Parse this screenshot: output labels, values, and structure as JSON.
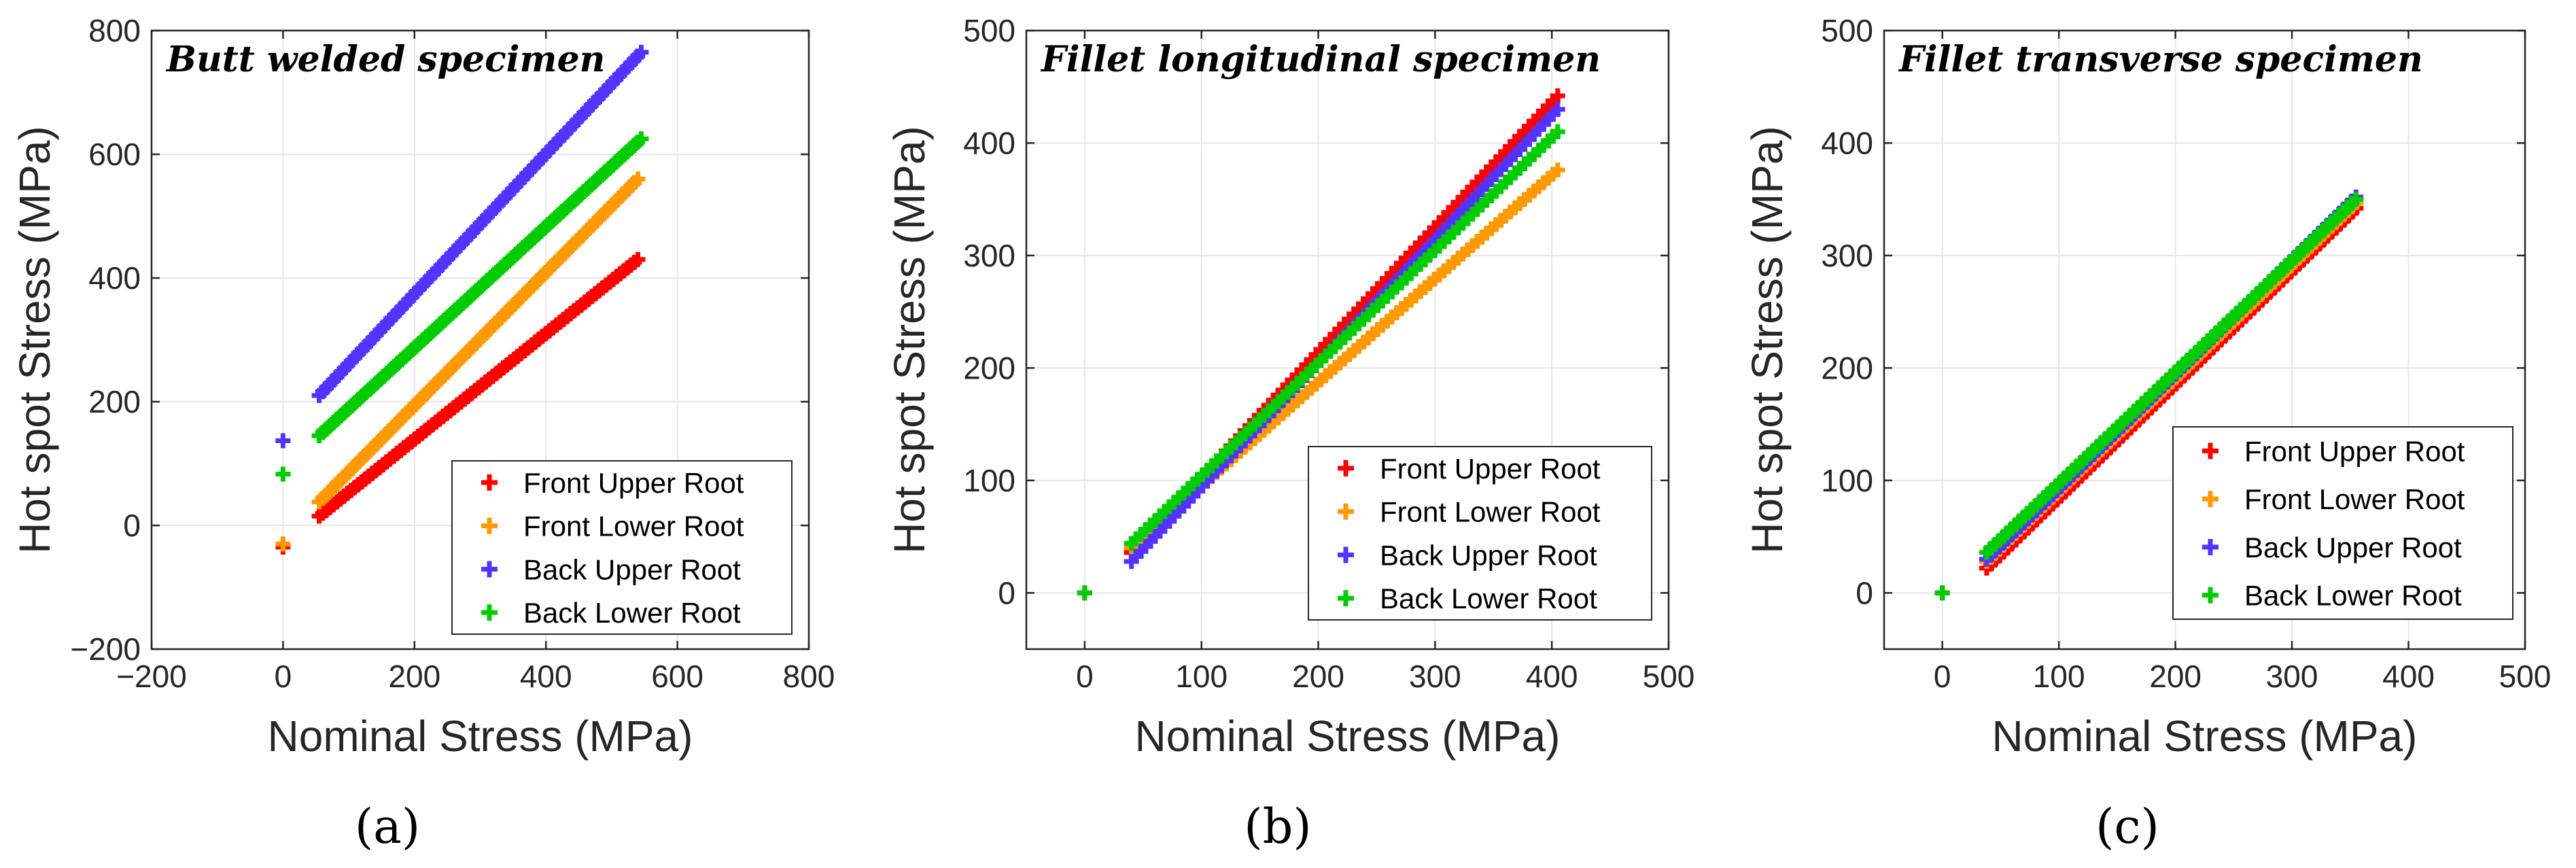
{
  "chart_data": [
    {
      "type": "scatter",
      "panel_label": "(a)",
      "title": "Butt welded specimen",
      "xlabel": "Nominal Stress (MPa)",
      "ylabel": "Hot spot Stress (MPa)",
      "xlim": [
        -200,
        800
      ],
      "ylim": [
        -200,
        800
      ],
      "xticks": [
        -200,
        0,
        200,
        400,
        600,
        800
      ],
      "yticks": [
        -200,
        0,
        200,
        400,
        600,
        800
      ],
      "xtick_labels": [
        "−200",
        "0",
        "200",
        "400",
        "600",
        "800"
      ],
      "ytick_labels": [
        "−200",
        "0",
        "200",
        "400",
        "600",
        "800"
      ],
      "grid": true,
      "legend_position": "bottom-right",
      "series": [
        {
          "name": "Front Upper Root",
          "color": "#ff0000",
          "outlier": [
            0,
            -35
          ],
          "line": [
            [
              55,
              15
            ],
            [
              540,
              430
            ]
          ]
        },
        {
          "name": "Front Lower Root",
          "color": "#ff9900",
          "outlier": [
            0,
            -30
          ],
          "line": [
            [
              55,
              38
            ],
            [
              540,
              560
            ]
          ]
        },
        {
          "name": "Back Upper Root",
          "color": "#5533ff",
          "outlier": [
            0,
            137
          ],
          "line": [
            [
              55,
              210
            ],
            [
              545,
              765
            ]
          ]
        },
        {
          "name": "Back Lower Root",
          "color": "#00cc00",
          "outlier": [
            0,
            83
          ],
          "line": [
            [
              55,
              145
            ],
            [
              545,
              625
            ]
          ]
        }
      ]
    },
    {
      "type": "scatter",
      "panel_label": "(b)",
      "title": "Fillet longitudinal specimen",
      "xlabel": "Nominal Stress (MPa)",
      "ylabel": "Hot spot Stress (MPa)",
      "xlim": [
        -50,
        500
      ],
      "ylim": [
        -50,
        500
      ],
      "xticks": [
        0,
        100,
        200,
        300,
        400,
        500
      ],
      "yticks": [
        0,
        100,
        200,
        300,
        400,
        500
      ],
      "xtick_labels": [
        "0",
        "100",
        "200",
        "300",
        "400",
        "500"
      ],
      "ytick_labels": [
        "0",
        "100",
        "200",
        "300",
        "400",
        "500"
      ],
      "grid": true,
      "legend_position": "bottom-right",
      "series": [
        {
          "name": "Front Upper Root",
          "color": "#ff0000",
          "outlier": [
            0,
            0
          ],
          "line": [
            [
              40,
              36
            ],
            [
              405,
              442
            ]
          ]
        },
        {
          "name": "Front Lower Root",
          "color": "#ff9900",
          "outlier": [
            0,
            0
          ],
          "line": [
            [
              40,
              40
            ],
            [
              405,
              376
            ]
          ]
        },
        {
          "name": "Back Upper Root",
          "color": "#5533ff",
          "outlier": [
            0,
            0
          ],
          "line": [
            [
              40,
              28
            ],
            [
              405,
              430
            ]
          ]
        },
        {
          "name": "Back Lower Root",
          "color": "#00cc00",
          "outlier": [
            0,
            0
          ],
          "line": [
            [
              40,
              44
            ],
            [
              405,
              410
            ]
          ]
        }
      ]
    },
    {
      "type": "scatter",
      "panel_label": "(c)",
      "title": "Fillet transverse specimen",
      "xlabel": "Nominal Stress (MPa)",
      "ylabel": "Hot spot Stress (MPa)",
      "xlim": [
        -50,
        500
      ],
      "ylim": [
        -50,
        500
      ],
      "xticks": [
        0,
        100,
        200,
        300,
        400,
        500
      ],
      "yticks": [
        0,
        100,
        200,
        300,
        400,
        500
      ],
      "xtick_labels": [
        "0",
        "100",
        "200",
        "300",
        "400",
        "500"
      ],
      "ytick_labels": [
        "0",
        "100",
        "200",
        "300",
        "400",
        "500"
      ],
      "grid": true,
      "legend_position": "bottom-right",
      "series": [
        {
          "name": "Front Upper Root",
          "color": "#ff0000",
          "outlier": [
            0,
            0
          ],
          "line": [
            [
              38,
              22
            ],
            [
              355,
              342
            ]
          ]
        },
        {
          "name": "Front Lower Root",
          "color": "#ff9900",
          "outlier": [
            0,
            0
          ],
          "line": [
            [
              38,
              28
            ],
            [
              355,
              347
            ]
          ]
        },
        {
          "name": "Back Upper Root",
          "color": "#5533ff",
          "outlier": [
            0,
            0
          ],
          "line": [
            [
              38,
              30
            ],
            [
              355,
              352
            ]
          ]
        },
        {
          "name": "Back Lower Root",
          "color": "#00cc00",
          "outlier": [
            0,
            0
          ],
          "line": [
            [
              38,
              36
            ],
            [
              355,
              350
            ]
          ]
        }
      ]
    }
  ]
}
